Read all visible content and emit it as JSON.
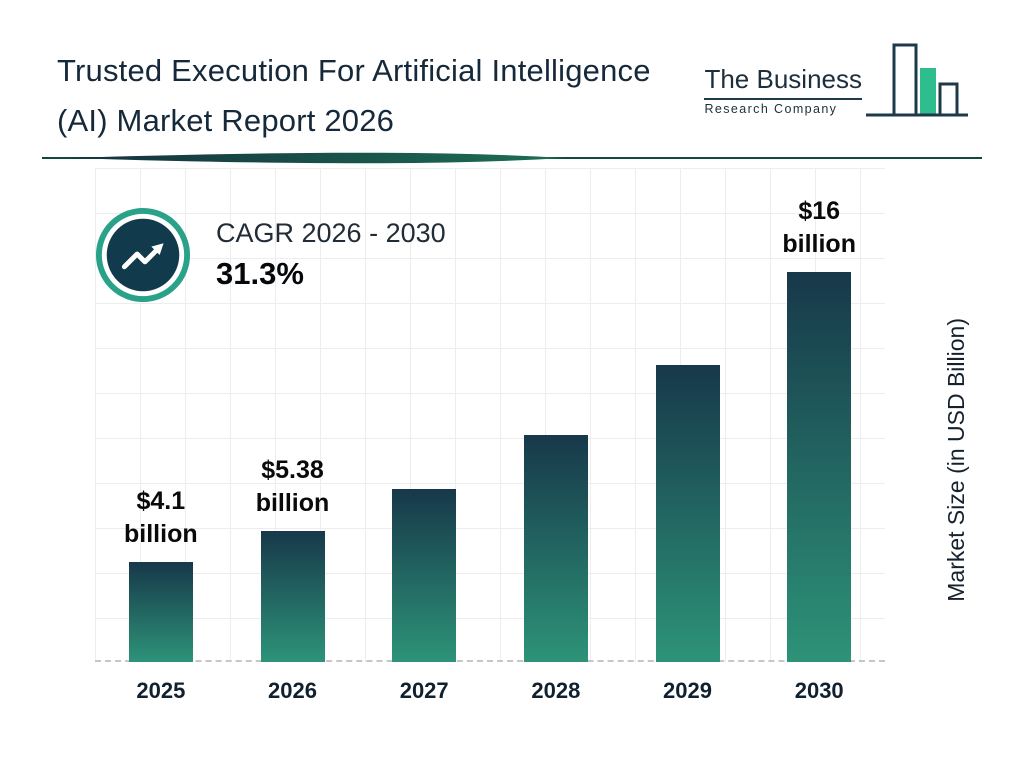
{
  "header": {
    "title": "Trusted Execution For Artificial Intelligence (AI) Market Report 2026",
    "logo": {
      "line1": "The Business",
      "line2": "Research Company",
      "icon": "bar-chart-logo-icon"
    }
  },
  "cagr": {
    "icon": "trend-up-icon",
    "label": "CAGR 2026 - 2030",
    "value": "31.3%"
  },
  "chart_data": {
    "type": "bar",
    "title": "Trusted Execution For Artificial Intelligence (AI) Market Report 2026",
    "categories": [
      "2025",
      "2026",
      "2027",
      "2028",
      "2029",
      "2030"
    ],
    "values": [
      4.1,
      5.38,
      7.1,
      9.3,
      12.2,
      16
    ],
    "value_labels": [
      [
        "$4.1",
        "billion"
      ],
      [
        "$5.38",
        "billion"
      ],
      null,
      null,
      null,
      [
        "$16",
        "billion"
      ]
    ],
    "labeled_values": {
      "2025": "$4.1 billion",
      "2026": "$5.38 billion",
      "2030": "$16 billion"
    },
    "cagr_2026_2030": "31.3%",
    "xlabel": "",
    "ylabel": "Market Size (in USD Billion)",
    "ylim": [
      0,
      16
    ],
    "grid": true,
    "legend": false,
    "note": "2027-2029 values unlabeled in image; estimated from 31.3% CAGR / bar heights"
  },
  "colors": {
    "title": "#15293a",
    "bar_top": "#17384a",
    "bar_bottom": "#2d9378",
    "ring": "#2aa189",
    "icon_circle": "#113a4c",
    "divider": "#11493f",
    "grid": "#ededed",
    "dash": "#c6c6c6"
  }
}
